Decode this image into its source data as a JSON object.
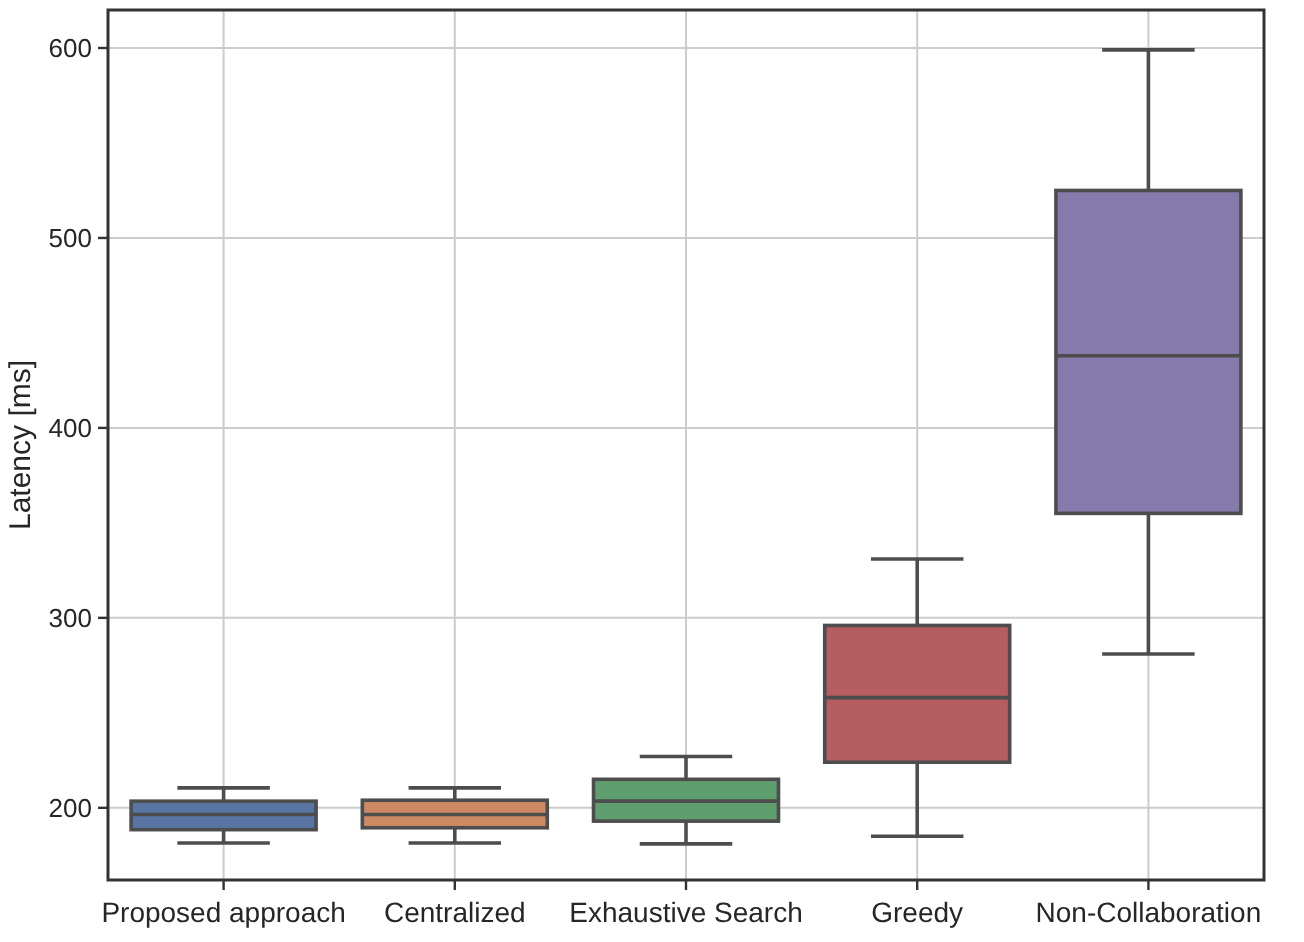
{
  "chart_data": {
    "type": "box",
    "ylabel": "Latency [ms]",
    "categories": [
      "Proposed approach",
      "Centralized",
      "Exhaustive Search",
      "Greedy",
      "Non-Collaboration"
    ],
    "colors": [
      "#5975a4",
      "#cc8963",
      "#5f9e6e",
      "#b55d60",
      "#857aab"
    ],
    "boxes": [
      {
        "low": 181.5,
        "q1": 188.5,
        "median": 196.5,
        "q3": 203.5,
        "high": 210.5
      },
      {
        "low": 181.5,
        "q1": 189.5,
        "median": 196.5,
        "q3": 204,
        "high": 210.5
      },
      {
        "low": 181,
        "q1": 193,
        "median": 203.5,
        "q3": 215,
        "high": 227
      },
      {
        "low": 185,
        "q1": 224,
        "median": 258,
        "q3": 296,
        "high": 331
      },
      {
        "low": 281,
        "q1": 355,
        "median": 438,
        "q3": 525,
        "high": 599
      }
    ],
    "ylim": [
      162,
      620
    ],
    "yticks": [
      200,
      300,
      400,
      500,
      600
    ],
    "grid": true
  }
}
